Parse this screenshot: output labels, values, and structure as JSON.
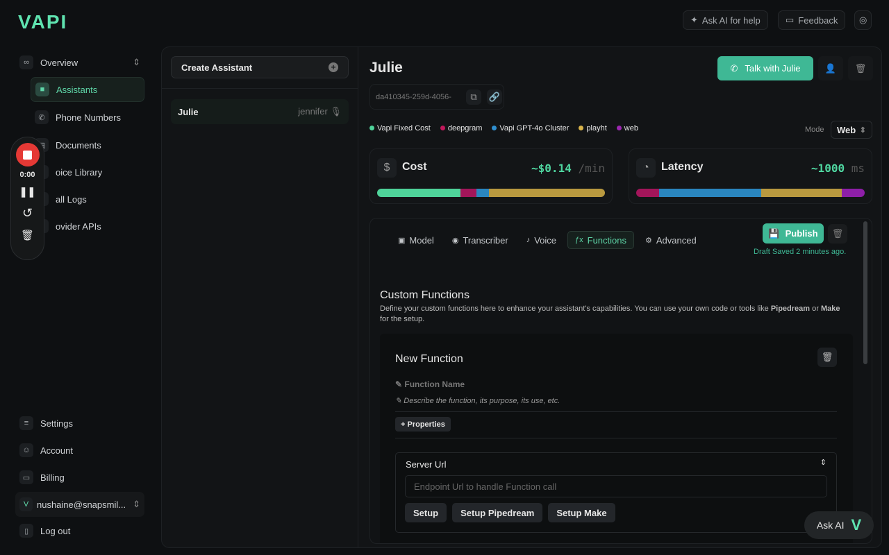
{
  "brand": {
    "logo": "VAPI",
    "accent": "#5fe3b0"
  },
  "top": {
    "ask_ai": "Ask AI for help",
    "feedback": "Feedback"
  },
  "sidebar": {
    "overview": "Overview",
    "items": [
      {
        "label": "Assistants",
        "icon": "assistant-icon"
      },
      {
        "label": "Phone Numbers",
        "icon": "phone-icon"
      },
      {
        "label": "Documents",
        "icon": "document-icon"
      },
      {
        "label": "oice Library",
        "icon": "voice-icon"
      },
      {
        "label": "all Logs",
        "icon": "logs-icon"
      },
      {
        "label": "ovider APIs",
        "icon": "api-icon"
      }
    ],
    "bottom": [
      {
        "label": "Settings"
      },
      {
        "label": "Account"
      },
      {
        "label": "Billing"
      }
    ],
    "user": "nushaine@snapsmil...",
    "logout": "Log out"
  },
  "recorder": {
    "time": "0:00"
  },
  "list": {
    "create": "Create Assistant",
    "items": [
      {
        "name": "Julie",
        "voice": "jennifer"
      }
    ]
  },
  "assistant": {
    "name": "Julie",
    "id": "da410345-259d-4056-",
    "talk": "Talk with Julie",
    "legend": [
      {
        "label": "Vapi Fixed Cost",
        "color": "#4fd39a"
      },
      {
        "label": "deepgram",
        "color": "#c2185b"
      },
      {
        "label": "Vapi GPT-4o Cluster",
        "color": "#2f8fd0"
      },
      {
        "label": "playht",
        "color": "#d9b44a"
      },
      {
        "label": "web",
        "color": "#9c27b0"
      }
    ],
    "mode_label": "Mode",
    "mode": "Web",
    "cost": {
      "title": "Cost",
      "value": "~$0.14",
      "unit": "/min",
      "segments": [
        {
          "color": "#4fd39a",
          "pct": 36.6
        },
        {
          "color": "#a3155a",
          "pct": 7
        },
        {
          "color": "#2a86bf",
          "pct": 5.5
        },
        {
          "color": "#b9993f",
          "pct": 50.9
        }
      ]
    },
    "latency": {
      "title": "Latency",
      "value": "~1000",
      "unit": "ms",
      "segments": [
        {
          "color": "#a3155a",
          "pct": 10
        },
        {
          "color": "#2a86bf",
          "pct": 44.7
        },
        {
          "color": "#b9993f",
          "pct": 35.3
        },
        {
          "color": "#8e1fa8",
          "pct": 10
        }
      ]
    }
  },
  "tabs": [
    {
      "label": "Model",
      "icon": "model-icon"
    },
    {
      "label": "Transcriber",
      "icon": "transcriber-icon"
    },
    {
      "label": "Voice",
      "icon": "voice-icon"
    },
    {
      "label": "Functions",
      "icon": "function-icon",
      "active": true
    },
    {
      "label": "Advanced",
      "icon": "gear-icon"
    }
  ],
  "publish": {
    "label": "Publish",
    "draft": "Draft Saved 2 minutes ago."
  },
  "functions": {
    "title": "Custom Functions",
    "desc_pre": "Define your custom functions here to enhance your assistant's capabilities. You can use your own code or tools like ",
    "pipedream": "Pipedream",
    "or": " or ",
    "make": "Make",
    "desc_post": " for the setup.",
    "card": {
      "title": "New Function",
      "name_placeholder": "Function Name",
      "desc_placeholder": "Describe the function, its purpose, its use, etc.",
      "properties": "+ Properties",
      "server_url": "Server Url",
      "endpoint_placeholder": "Endpoint Url to handle Function call",
      "setup": "Setup",
      "setup_pipedream": "Setup Pipedream",
      "setup_make": "Setup Make"
    }
  },
  "ask_ai_fab": "Ask AI"
}
